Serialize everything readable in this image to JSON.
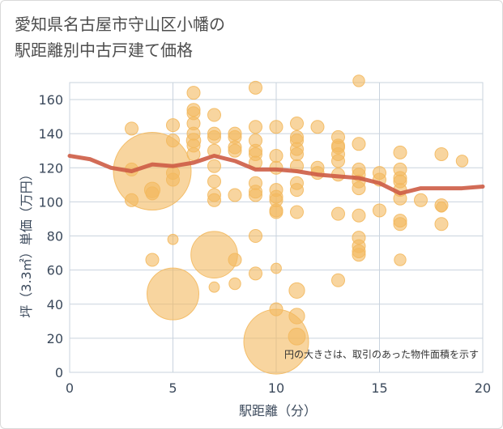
{
  "title_lines": [
    "愛知県名古屋市守山区小幡の",
    "駅距離別中古戸建て価格"
  ],
  "colors": {
    "bubble": "#f3b95f",
    "bubble_opacity": 0.6,
    "trend": "#cd5c45",
    "grid": "#c9d3de",
    "axis_text": "#3c4a5c",
    "plot_bg": "#ffffff"
  },
  "chart_data": {
    "type": "scatter",
    "xlabel": "駅距離（分）",
    "ylabel": "坪（3.3㎡）単価（万円）",
    "xlim": [
      0,
      20
    ],
    "ylim": [
      0,
      170
    ],
    "xticks": [
      0,
      5,
      10,
      15,
      20
    ],
    "yticks": [
      0,
      20,
      40,
      60,
      80,
      100,
      120,
      140,
      160
    ],
    "grid": true,
    "note": "円の大きさは、取引のあった物件面積を示す",
    "points": [
      {
        "x": 3,
        "y": 143,
        "s": 1
      },
      {
        "x": 3,
        "y": 119,
        "s": 1
      },
      {
        "x": 3,
        "y": 101,
        "s": 1
      },
      {
        "x": 4,
        "y": 118,
        "s": 6
      },
      {
        "x": 4,
        "y": 107,
        "s": 1.2
      },
      {
        "x": 4,
        "y": 105,
        "s": 1
      },
      {
        "x": 4,
        "y": 66,
        "s": 1
      },
      {
        "x": 5,
        "y": 145,
        "s": 1
      },
      {
        "x": 5,
        "y": 136,
        "s": 1
      },
      {
        "x": 5,
        "y": 117,
        "s": 1
      },
      {
        "x": 5,
        "y": 113,
        "s": 1
      },
      {
        "x": 5,
        "y": 78,
        "s": 0.8
      },
      {
        "x": 5,
        "y": 46,
        "s": 4
      },
      {
        "x": 6,
        "y": 164,
        "s": 1
      },
      {
        "x": 6,
        "y": 154,
        "s": 1
      },
      {
        "x": 6,
        "y": 152,
        "s": 1
      },
      {
        "x": 6,
        "y": 146,
        "s": 1
      },
      {
        "x": 6,
        "y": 140,
        "s": 1
      },
      {
        "x": 6,
        "y": 136,
        "s": 1.1
      },
      {
        "x": 6,
        "y": 133,
        "s": 1
      },
      {
        "x": 6,
        "y": 128,
        "s": 1
      },
      {
        "x": 7,
        "y": 151,
        "s": 1
      },
      {
        "x": 7,
        "y": 140,
        "s": 1
      },
      {
        "x": 7,
        "y": 138,
        "s": 1
      },
      {
        "x": 7,
        "y": 130,
        "s": 1
      },
      {
        "x": 7,
        "y": 121,
        "s": 1
      },
      {
        "x": 7,
        "y": 112,
        "s": 1
      },
      {
        "x": 7,
        "y": 104,
        "s": 1
      },
      {
        "x": 7,
        "y": 101,
        "s": 1
      },
      {
        "x": 7,
        "y": 69,
        "s": 3.6
      },
      {
        "x": 7,
        "y": 50,
        "s": 0.8
      },
      {
        "x": 8,
        "y": 140,
        "s": 1
      },
      {
        "x": 8,
        "y": 138,
        "s": 1
      },
      {
        "x": 8,
        "y": 132,
        "s": 1
      },
      {
        "x": 8,
        "y": 130,
        "s": 1
      },
      {
        "x": 8,
        "y": 104,
        "s": 1
      },
      {
        "x": 8,
        "y": 66,
        "s": 1
      },
      {
        "x": 8,
        "y": 52,
        "s": 0.9
      },
      {
        "x": 9,
        "y": 167,
        "s": 1
      },
      {
        "x": 9,
        "y": 144,
        "s": 1
      },
      {
        "x": 9,
        "y": 136,
        "s": 1
      },
      {
        "x": 9,
        "y": 130,
        "s": 1
      },
      {
        "x": 9,
        "y": 128,
        "s": 1
      },
      {
        "x": 9,
        "y": 123,
        "s": 1
      },
      {
        "x": 9,
        "y": 111,
        "s": 1
      },
      {
        "x": 9,
        "y": 106,
        "s": 1
      },
      {
        "x": 9,
        "y": 104,
        "s": 1
      },
      {
        "x": 9,
        "y": 80,
        "s": 1
      },
      {
        "x": 9,
        "y": 58,
        "s": 1
      },
      {
        "x": 10,
        "y": 144,
        "s": 1
      },
      {
        "x": 10,
        "y": 127,
        "s": 1
      },
      {
        "x": 10,
        "y": 120,
        "s": 1
      },
      {
        "x": 10,
        "y": 107,
        "s": 1
      },
      {
        "x": 10,
        "y": 103,
        "s": 1
      },
      {
        "x": 10,
        "y": 101,
        "s": 1
      },
      {
        "x": 10,
        "y": 95,
        "s": 1
      },
      {
        "x": 10,
        "y": 94,
        "s": 1
      },
      {
        "x": 10,
        "y": 61,
        "s": 0.8
      },
      {
        "x": 10,
        "y": 37,
        "s": 1
      },
      {
        "x": 10,
        "y": 18,
        "s": 5
      },
      {
        "x": 11,
        "y": 146,
        "s": 1
      },
      {
        "x": 11,
        "y": 138,
        "s": 1
      },
      {
        "x": 11,
        "y": 136,
        "s": 1
      },
      {
        "x": 11,
        "y": 131,
        "s": 1
      },
      {
        "x": 11,
        "y": 128,
        "s": 1
      },
      {
        "x": 11,
        "y": 121,
        "s": 1
      },
      {
        "x": 11,
        "y": 111,
        "s": 1
      },
      {
        "x": 11,
        "y": 107,
        "s": 1
      },
      {
        "x": 11,
        "y": 94,
        "s": 1
      },
      {
        "x": 11,
        "y": 48,
        "s": 1.2
      },
      {
        "x": 11,
        "y": 33,
        "s": 1.2
      },
      {
        "x": 11,
        "y": 21,
        "s": 1.3
      },
      {
        "x": 12,
        "y": 144,
        "s": 1
      },
      {
        "x": 12,
        "y": 120,
        "s": 1
      },
      {
        "x": 12,
        "y": 117,
        "s": 1
      },
      {
        "x": 13,
        "y": 138,
        "s": 1
      },
      {
        "x": 13,
        "y": 133,
        "s": 1
      },
      {
        "x": 13,
        "y": 132,
        "s": 1
      },
      {
        "x": 13,
        "y": 128,
        "s": 1
      },
      {
        "x": 13,
        "y": 124,
        "s": 1
      },
      {
        "x": 13,
        "y": 116,
        "s": 1
      },
      {
        "x": 13,
        "y": 93,
        "s": 1
      },
      {
        "x": 13,
        "y": 54,
        "s": 1
      },
      {
        "x": 14,
        "y": 171,
        "s": 0.9
      },
      {
        "x": 14,
        "y": 134,
        "s": 1
      },
      {
        "x": 14,
        "y": 119,
        "s": 1
      },
      {
        "x": 14,
        "y": 116,
        "s": 1
      },
      {
        "x": 14,
        "y": 112,
        "s": 1
      },
      {
        "x": 14,
        "y": 108,
        "s": 1
      },
      {
        "x": 14,
        "y": 92,
        "s": 1
      },
      {
        "x": 14,
        "y": 79,
        "s": 1
      },
      {
        "x": 14,
        "y": 74,
        "s": 1
      },
      {
        "x": 14,
        "y": 71,
        "s": 1
      },
      {
        "x": 14,
        "y": 69,
        "s": 1
      },
      {
        "x": 15,
        "y": 117,
        "s": 1
      },
      {
        "x": 15,
        "y": 113,
        "s": 1
      },
      {
        "x": 15,
        "y": 95,
        "s": 1
      },
      {
        "x": 16,
        "y": 129,
        "s": 1
      },
      {
        "x": 16,
        "y": 119,
        "s": 1
      },
      {
        "x": 16,
        "y": 114,
        "s": 1
      },
      {
        "x": 16,
        "y": 112,
        "s": 1
      },
      {
        "x": 16,
        "y": 107,
        "s": 1
      },
      {
        "x": 16,
        "y": 102,
        "s": 1
      },
      {
        "x": 16,
        "y": 89,
        "s": 1
      },
      {
        "x": 16,
        "y": 87,
        "s": 1
      },
      {
        "x": 16,
        "y": 66,
        "s": 0.9
      },
      {
        "x": 17,
        "y": 101,
        "s": 1
      },
      {
        "x": 18,
        "y": 128,
        "s": 1
      },
      {
        "x": 18,
        "y": 98,
        "s": 1
      },
      {
        "x": 18,
        "y": 97,
        "s": 0.8
      },
      {
        "x": 18,
        "y": 87,
        "s": 1
      },
      {
        "x": 19,
        "y": 124,
        "s": 0.9
      }
    ],
    "trend": {
      "x": [
        0,
        1,
        2,
        3,
        4,
        5,
        6,
        7,
        8,
        9,
        10,
        11,
        12,
        13,
        14,
        15,
        16,
        17,
        18,
        19,
        20
      ],
      "y": [
        127,
        125,
        120,
        118,
        122,
        121,
        123,
        127,
        124,
        119,
        119,
        118,
        116,
        115,
        114,
        111,
        105,
        108,
        108,
        108,
        109
      ]
    }
  }
}
